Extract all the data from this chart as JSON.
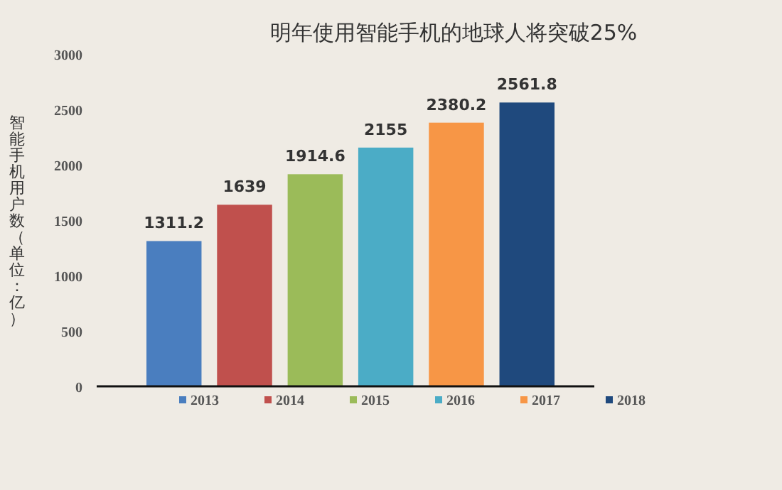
{
  "chart_data": {
    "type": "bar",
    "title": "明年使用智能手机的地球人将突破25%",
    "ylabel": "智能手机用户数（单位：亿）",
    "categories": [
      null,
      null,
      null,
      null,
      null,
      null
    ],
    "series": [
      {
        "name": "2013",
        "color": "#4a7ebf",
        "values": [
          1311.2,
          null,
          null,
          null,
          null,
          null
        ]
      },
      {
        "name": "2014",
        "color": "#c0504d",
        "values": [
          null,
          1639,
          null,
          null,
          null,
          null
        ]
      },
      {
        "name": "2015",
        "color": "#9bbb59",
        "values": [
          null,
          null,
          1914.6,
          null,
          null,
          null
        ]
      },
      {
        "name": "2016",
        "color": "#4bacc6",
        "values": [
          null,
          null,
          null,
          2155,
          null,
          null
        ]
      },
      {
        "name": "2017",
        "color": "#f79646",
        "values": [
          null,
          null,
          null,
          null,
          2380.2,
          null
        ]
      },
      {
        "name": "2018",
        "color": "#1f497d",
        "values": [
          null,
          null,
          null,
          null,
          null,
          2561.8
        ]
      }
    ],
    "ylim": [
      0,
      3000
    ],
    "yticks": [
      0,
      500,
      1000,
      1500,
      2000,
      2500,
      3000
    ],
    "data_labels": true,
    "legend": "bottom",
    "grid": false
  }
}
